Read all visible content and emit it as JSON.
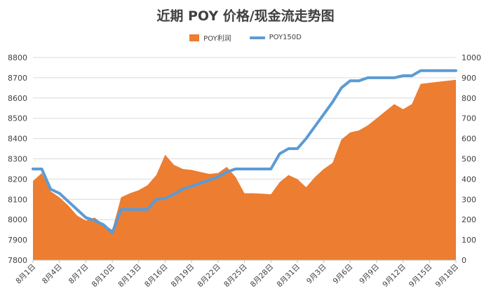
{
  "chart_data": {
    "type": "area",
    "title": "近期 POY 价格/现金流走势图",
    "x": [
      "8月1日",
      "8月2日",
      "8月3日",
      "8月4日",
      "8月5日",
      "8月6日",
      "8月7日",
      "8月8日",
      "8月9日",
      "8月10日",
      "8月11日",
      "8月12日",
      "8月13日",
      "8月14日",
      "8月15日",
      "8月16日",
      "8月17日",
      "8月18日",
      "8月19日",
      "8月20日",
      "8月21日",
      "8月22日",
      "8月23日",
      "8月24日",
      "8月25日",
      "8月26日",
      "8月27日",
      "8月28日",
      "8月29日",
      "8月30日",
      "8月31日",
      "9月1日",
      "9月2日",
      "9月3日",
      "9月4日",
      "9月5日",
      "9月6日",
      "9月7日",
      "9月8日",
      "9月9日",
      "9月10日",
      "9月11日",
      "9月12日",
      "9月13日",
      "9月14日",
      "9月15日",
      "9月16日",
      "9月17日",
      "9月18日"
    ],
    "x_tick_labels": [
      "8月1日",
      "8月4日",
      "8月7日",
      "8月10日",
      "8月13日",
      "8月16日",
      "8月19日",
      "8月22日",
      "8月25日",
      "8月28日",
      "8月31日",
      "9月3日",
      "9月6日",
      "9月9日",
      "9月12日",
      "9月15日",
      "9月18日"
    ],
    "series": [
      {
        "name": "POY利润",
        "axis": "right",
        "type": "area",
        "color": "#ED7D31",
        "values": [
          390,
          430,
          340,
          310,
          270,
          220,
          195,
          210,
          175,
          150,
          310,
          330,
          345,
          370,
          420,
          520,
          470,
          450,
          445,
          435,
          425,
          430,
          460,
          410,
          330,
          330,
          328,
          325,
          385,
          420,
          400,
          360,
          410,
          450,
          480,
          595,
          630,
          640,
          665,
          700,
          735,
          770,
          745,
          770,
          870,
          875,
          880,
          885,
          890
        ]
      },
      {
        "name": "POY150D",
        "axis": "left",
        "type": "line",
        "color": "#5B9BD5",
        "values": [
          8250,
          8250,
          8150,
          8130,
          8090,
          8050,
          8010,
          7995,
          7975,
          7935,
          8050,
          8050,
          8050,
          8050,
          8100,
          8105,
          8125,
          8150,
          8165,
          8180,
          8195,
          8210,
          8235,
          8250,
          8250,
          8250,
          8250,
          8250,
          8325,
          8350,
          8350,
          8400,
          8460,
          8520,
          8580,
          8650,
          8685,
          8685,
          8700,
          8700,
          8700,
          8700,
          8710,
          8710,
          8735,
          8735,
          8735,
          8735,
          8735
        ]
      }
    ],
    "y_left": {
      "min": 7800,
      "max": 8800,
      "step": 100,
      "ticks": [
        "7800",
        "7900",
        "8000",
        "8100",
        "8200",
        "8300",
        "8400",
        "8500",
        "8600",
        "8700",
        "8800"
      ]
    },
    "y_right": {
      "min": 0,
      "max": 1000,
      "step": 100,
      "ticks": [
        "0",
        "100",
        "200",
        "300",
        "400",
        "500",
        "600",
        "700",
        "800",
        "900",
        "1000"
      ]
    },
    "legend": "top",
    "grid": true
  }
}
